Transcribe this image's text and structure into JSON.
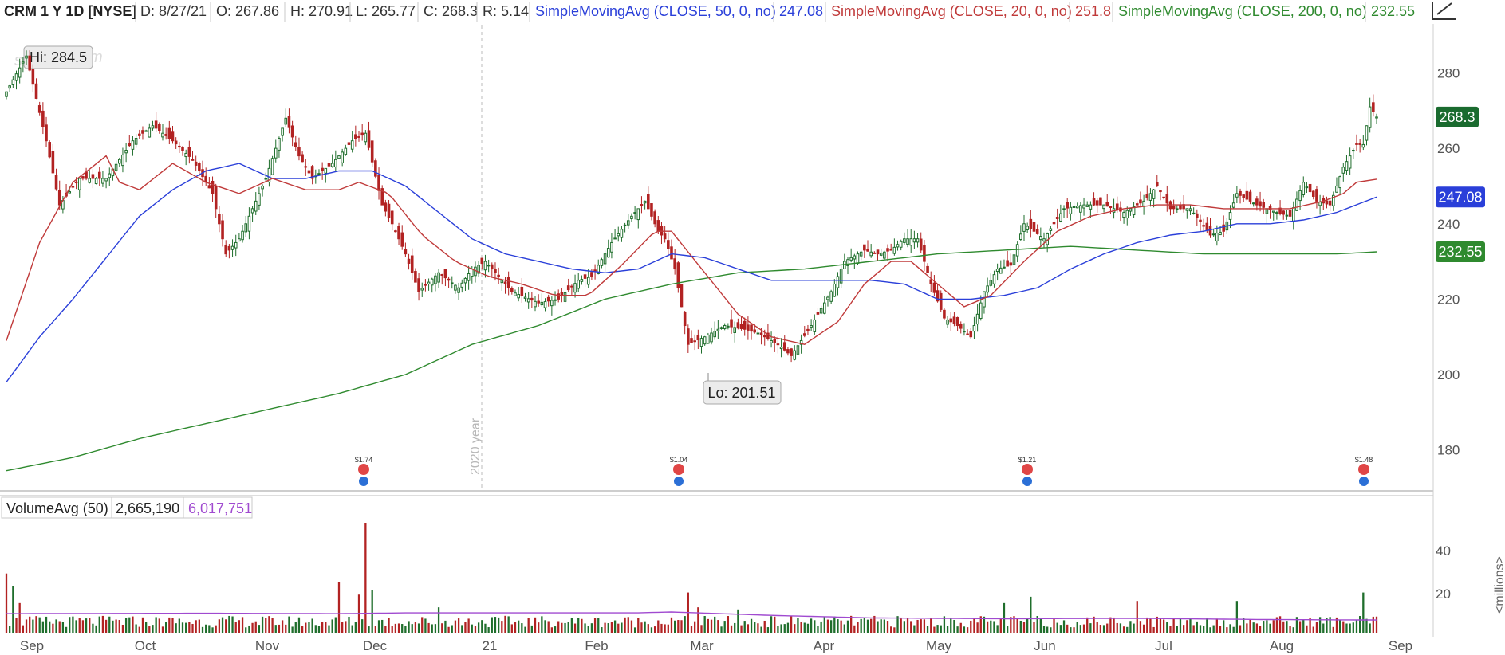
{
  "chart_data": {
    "type": "candlestick",
    "symbol": "CRM 1 Y 1D [NYSE]",
    "header": {
      "date_label": "D: 8/27/21",
      "open_label": "O: 267.86",
      "high_label": "H: 270.91",
      "low_label": "L: 265.77",
      "close_label": "C: 268.3",
      "range_label": "R: 5.14"
    },
    "indicators": [
      {
        "label": "SimpleMovingAvg (CLOSE, 50, 0, no)",
        "value": "247.08",
        "color": "#2a3fd9",
        "last": 247.08
      },
      {
        "label": "SimpleMovingAvg (CLOSE, 20, 0, no)",
        "value": "251.8",
        "color": "#c03a3a",
        "last": 251.8
      },
      {
        "label": "SimpleMovingAvg (CLOSE, 200, 0, no)",
        "value": "232.55",
        "color": "#2f8a2f",
        "last": 232.55
      }
    ],
    "price_axis": {
      "ticks": [
        280,
        260,
        240,
        220,
        200,
        180
      ],
      "ylim": [
        170,
        293
      ]
    },
    "price_badges": [
      {
        "label": "268.3",
        "value": 268.3,
        "color": "#1a6b2f"
      },
      {
        "label": "247.08",
        "value": 247.08,
        "color": "#2a3fd9"
      },
      {
        "label": "232.55",
        "value": 232.55,
        "color": "#2f8a2f"
      }
    ],
    "x_axis": {
      "labels": [
        "Sep",
        "Oct",
        "Nov",
        "Dec",
        "21",
        "Feb",
        "Mar",
        "Apr",
        "May",
        "Jun",
        "Jul",
        "Aug",
        "Sep"
      ],
      "year_marker": "2020 year"
    },
    "annotations": {
      "high": "Hi: 284.5",
      "low": "Lo: 201.51"
    },
    "high_value": 284.5,
    "low_value": 201.51,
    "event_markers": [
      {
        "label": "$1.74",
        "month": "Dec"
      },
      {
        "label": "$1.04",
        "month": "Mar"
      },
      {
        "label": "$1.21",
        "month": "Jun"
      },
      {
        "label": "$1.48",
        "month": "Sep"
      }
    ],
    "price_path": [
      [
        0,
        275
      ],
      [
        6,
        284.5
      ],
      [
        12,
        262
      ],
      [
        16,
        245
      ],
      [
        22,
        252
      ],
      [
        30,
        252
      ],
      [
        38,
        262
      ],
      [
        44,
        266
      ],
      [
        50,
        262
      ],
      [
        56,
        257
      ],
      [
        62,
        248
      ],
      [
        66,
        232
      ],
      [
        70,
        236
      ],
      [
        78,
        252
      ],
      [
        84,
        268
      ],
      [
        88,
        258
      ],
      [
        92,
        252
      ],
      [
        98,
        256
      ],
      [
        104,
        262
      ],
      [
        108,
        264
      ],
      [
        113,
        245
      ],
      [
        116,
        240
      ],
      [
        120,
        232
      ],
      [
        124,
        222
      ],
      [
        130,
        227
      ],
      [
        136,
        223
      ],
      [
        140,
        228
      ],
      [
        144,
        230
      ],
      [
        152,
        222
      ],
      [
        160,
        219
      ],
      [
        166,
        220
      ],
      [
        172,
        225
      ],
      [
        176,
        226
      ],
      [
        182,
        235
      ],
      [
        188,
        242
      ],
      [
        192,
        246
      ],
      [
        196,
        238
      ],
      [
        198,
        236
      ],
      [
        201,
        228
      ],
      [
        205,
        208
      ],
      [
        210,
        210
      ],
      [
        216,
        213
      ],
      [
        222,
        212
      ],
      [
        226,
        211
      ],
      [
        232,
        208
      ],
      [
        236,
        205
      ],
      [
        242,
        213
      ],
      [
        248,
        222
      ],
      [
        252,
        230
      ],
      [
        258,
        233
      ],
      [
        262,
        232
      ],
      [
        266,
        233
      ],
      [
        270,
        236
      ],
      [
        274,
        236
      ],
      [
        278,
        224
      ],
      [
        282,
        215
      ],
      [
        286,
        213
      ],
      [
        290,
        210
      ],
      [
        294,
        222
      ],
      [
        298,
        228
      ],
      [
        302,
        229
      ],
      [
        306,
        240
      ],
      [
        312,
        236
      ],
      [
        318,
        244
      ],
      [
        324,
        245
      ],
      [
        330,
        245
      ],
      [
        336,
        243
      ],
      [
        342,
        246
      ],
      [
        346,
        250
      ],
      [
        350,
        244
      ],
      [
        356,
        244
      ],
      [
        362,
        237
      ],
      [
        366,
        238
      ],
      [
        370,
        248
      ],
      [
        376,
        245
      ],
      [
        382,
        243
      ],
      [
        386,
        242
      ],
      [
        390,
        251
      ],
      [
        394,
        246
      ],
      [
        398,
        245
      ],
      [
        402,
        255
      ],
      [
        406,
        261
      ],
      [
        408,
        261
      ],
      [
        410,
        271
      ],
      [
        412,
        268.3
      ]
    ],
    "sma20_path": [
      [
        0,
        209
      ],
      [
        10,
        235
      ],
      [
        20,
        251
      ],
      [
        30,
        258
      ],
      [
        34,
        251
      ],
      [
        40,
        249
      ],
      [
        50,
        256
      ],
      [
        60,
        251
      ],
      [
        70,
        248
      ],
      [
        80,
        252
      ],
      [
        90,
        249
      ],
      [
        100,
        249
      ],
      [
        106,
        251
      ],
      [
        115,
        248
      ],
      [
        125,
        237
      ],
      [
        135,
        230
      ],
      [
        145,
        226
      ],
      [
        155,
        224
      ],
      [
        165,
        221
      ],
      [
        175,
        221
      ],
      [
        185,
        229
      ],
      [
        195,
        238
      ],
      [
        200,
        238
      ],
      [
        210,
        227
      ],
      [
        220,
        216
      ],
      [
        230,
        210
      ],
      [
        240,
        208
      ],
      [
        250,
        214
      ],
      [
        258,
        224
      ],
      [
        266,
        230
      ],
      [
        272,
        230
      ],
      [
        280,
        224
      ],
      [
        288,
        218
      ],
      [
        296,
        221
      ],
      [
        306,
        230
      ],
      [
        316,
        238
      ],
      [
        326,
        242
      ],
      [
        336,
        244
      ],
      [
        346,
        245
      ],
      [
        356,
        245
      ],
      [
        366,
        244
      ],
      [
        376,
        244
      ],
      [
        386,
        244
      ],
      [
        396,
        246
      ],
      [
        402,
        248
      ],
      [
        406,
        251
      ],
      [
        412,
        251.8
      ]
    ],
    "sma50_path": [
      [
        0,
        198
      ],
      [
        10,
        210
      ],
      [
        20,
        220
      ],
      [
        30,
        231
      ],
      [
        40,
        242
      ],
      [
        50,
        249
      ],
      [
        60,
        254
      ],
      [
        70,
        256
      ],
      [
        80,
        252
      ],
      [
        90,
        252
      ],
      [
        100,
        254
      ],
      [
        110,
        254
      ],
      [
        120,
        250
      ],
      [
        130,
        243
      ],
      [
        140,
        236
      ],
      [
        150,
        232
      ],
      [
        160,
        230
      ],
      [
        170,
        228
      ],
      [
        180,
        227
      ],
      [
        190,
        228
      ],
      [
        200,
        232
      ],
      [
        210,
        231
      ],
      [
        220,
        228
      ],
      [
        230,
        225
      ],
      [
        240,
        225
      ],
      [
        250,
        225
      ],
      [
        260,
        225
      ],
      [
        270,
        224
      ],
      [
        280,
        220
      ],
      [
        290,
        220
      ],
      [
        300,
        221
      ],
      [
        310,
        223
      ],
      [
        320,
        228
      ],
      [
        330,
        232
      ],
      [
        340,
        235
      ],
      [
        350,
        237
      ],
      [
        360,
        238
      ],
      [
        370,
        240
      ],
      [
        380,
        240
      ],
      [
        390,
        241
      ],
      [
        400,
        243
      ],
      [
        412,
        247.08
      ]
    ],
    "sma200_path": [
      [
        0,
        174.5
      ],
      [
        20,
        178
      ],
      [
        40,
        183
      ],
      [
        60,
        187
      ],
      [
        80,
        191
      ],
      [
        100,
        195
      ],
      [
        120,
        200
      ],
      [
        140,
        208
      ],
      [
        160,
        213
      ],
      [
        180,
        220
      ],
      [
        200,
        224
      ],
      [
        220,
        227
      ],
      [
        240,
        228
      ],
      [
        260,
        230
      ],
      [
        280,
        232
      ],
      [
        300,
        233
      ],
      [
        320,
        234
      ],
      [
        340,
        233
      ],
      [
        360,
        232
      ],
      [
        380,
        232
      ],
      [
        400,
        232
      ],
      [
        412,
        232.55
      ]
    ],
    "volume": {
      "label": "VolumeAvg (50)",
      "value": "2,665,190",
      "avg_value": "6,017,751",
      "avg_color": "#a04ad0",
      "unit_label": "<millions>",
      "ticks": [
        40,
        20
      ],
      "ylim": [
        0,
        52
      ],
      "avg_line": [
        [
          0,
          9
        ],
        [
          60,
          9.2
        ],
        [
          100,
          9
        ],
        [
          120,
          9.4
        ],
        [
          160,
          9.4
        ],
        [
          190,
          9.4
        ],
        [
          200,
          9.8
        ],
        [
          230,
          8.2
        ],
        [
          260,
          7
        ],
        [
          300,
          6.6
        ],
        [
          340,
          6.8
        ],
        [
          380,
          6.2
        ],
        [
          412,
          6
        ]
      ],
      "spikes": [
        [
          0,
          28,
          "red"
        ],
        [
          2,
          22,
          "green"
        ],
        [
          4,
          14,
          "red"
        ],
        [
          100,
          24,
          "red"
        ],
        [
          106,
          18,
          "red"
        ],
        [
          108,
          52,
          "red"
        ],
        [
          110,
          20,
          "green"
        ],
        [
          130,
          12,
          "green"
        ],
        [
          205,
          19,
          "red"
        ],
        [
          208,
          12,
          "red"
        ],
        [
          220,
          11,
          "green"
        ],
        [
          300,
          14,
          "green"
        ],
        [
          308,
          17,
          "green"
        ],
        [
          340,
          15,
          "red"
        ],
        [
          370,
          15,
          "green"
        ],
        [
          408,
          19,
          "green"
        ]
      ]
    }
  }
}
